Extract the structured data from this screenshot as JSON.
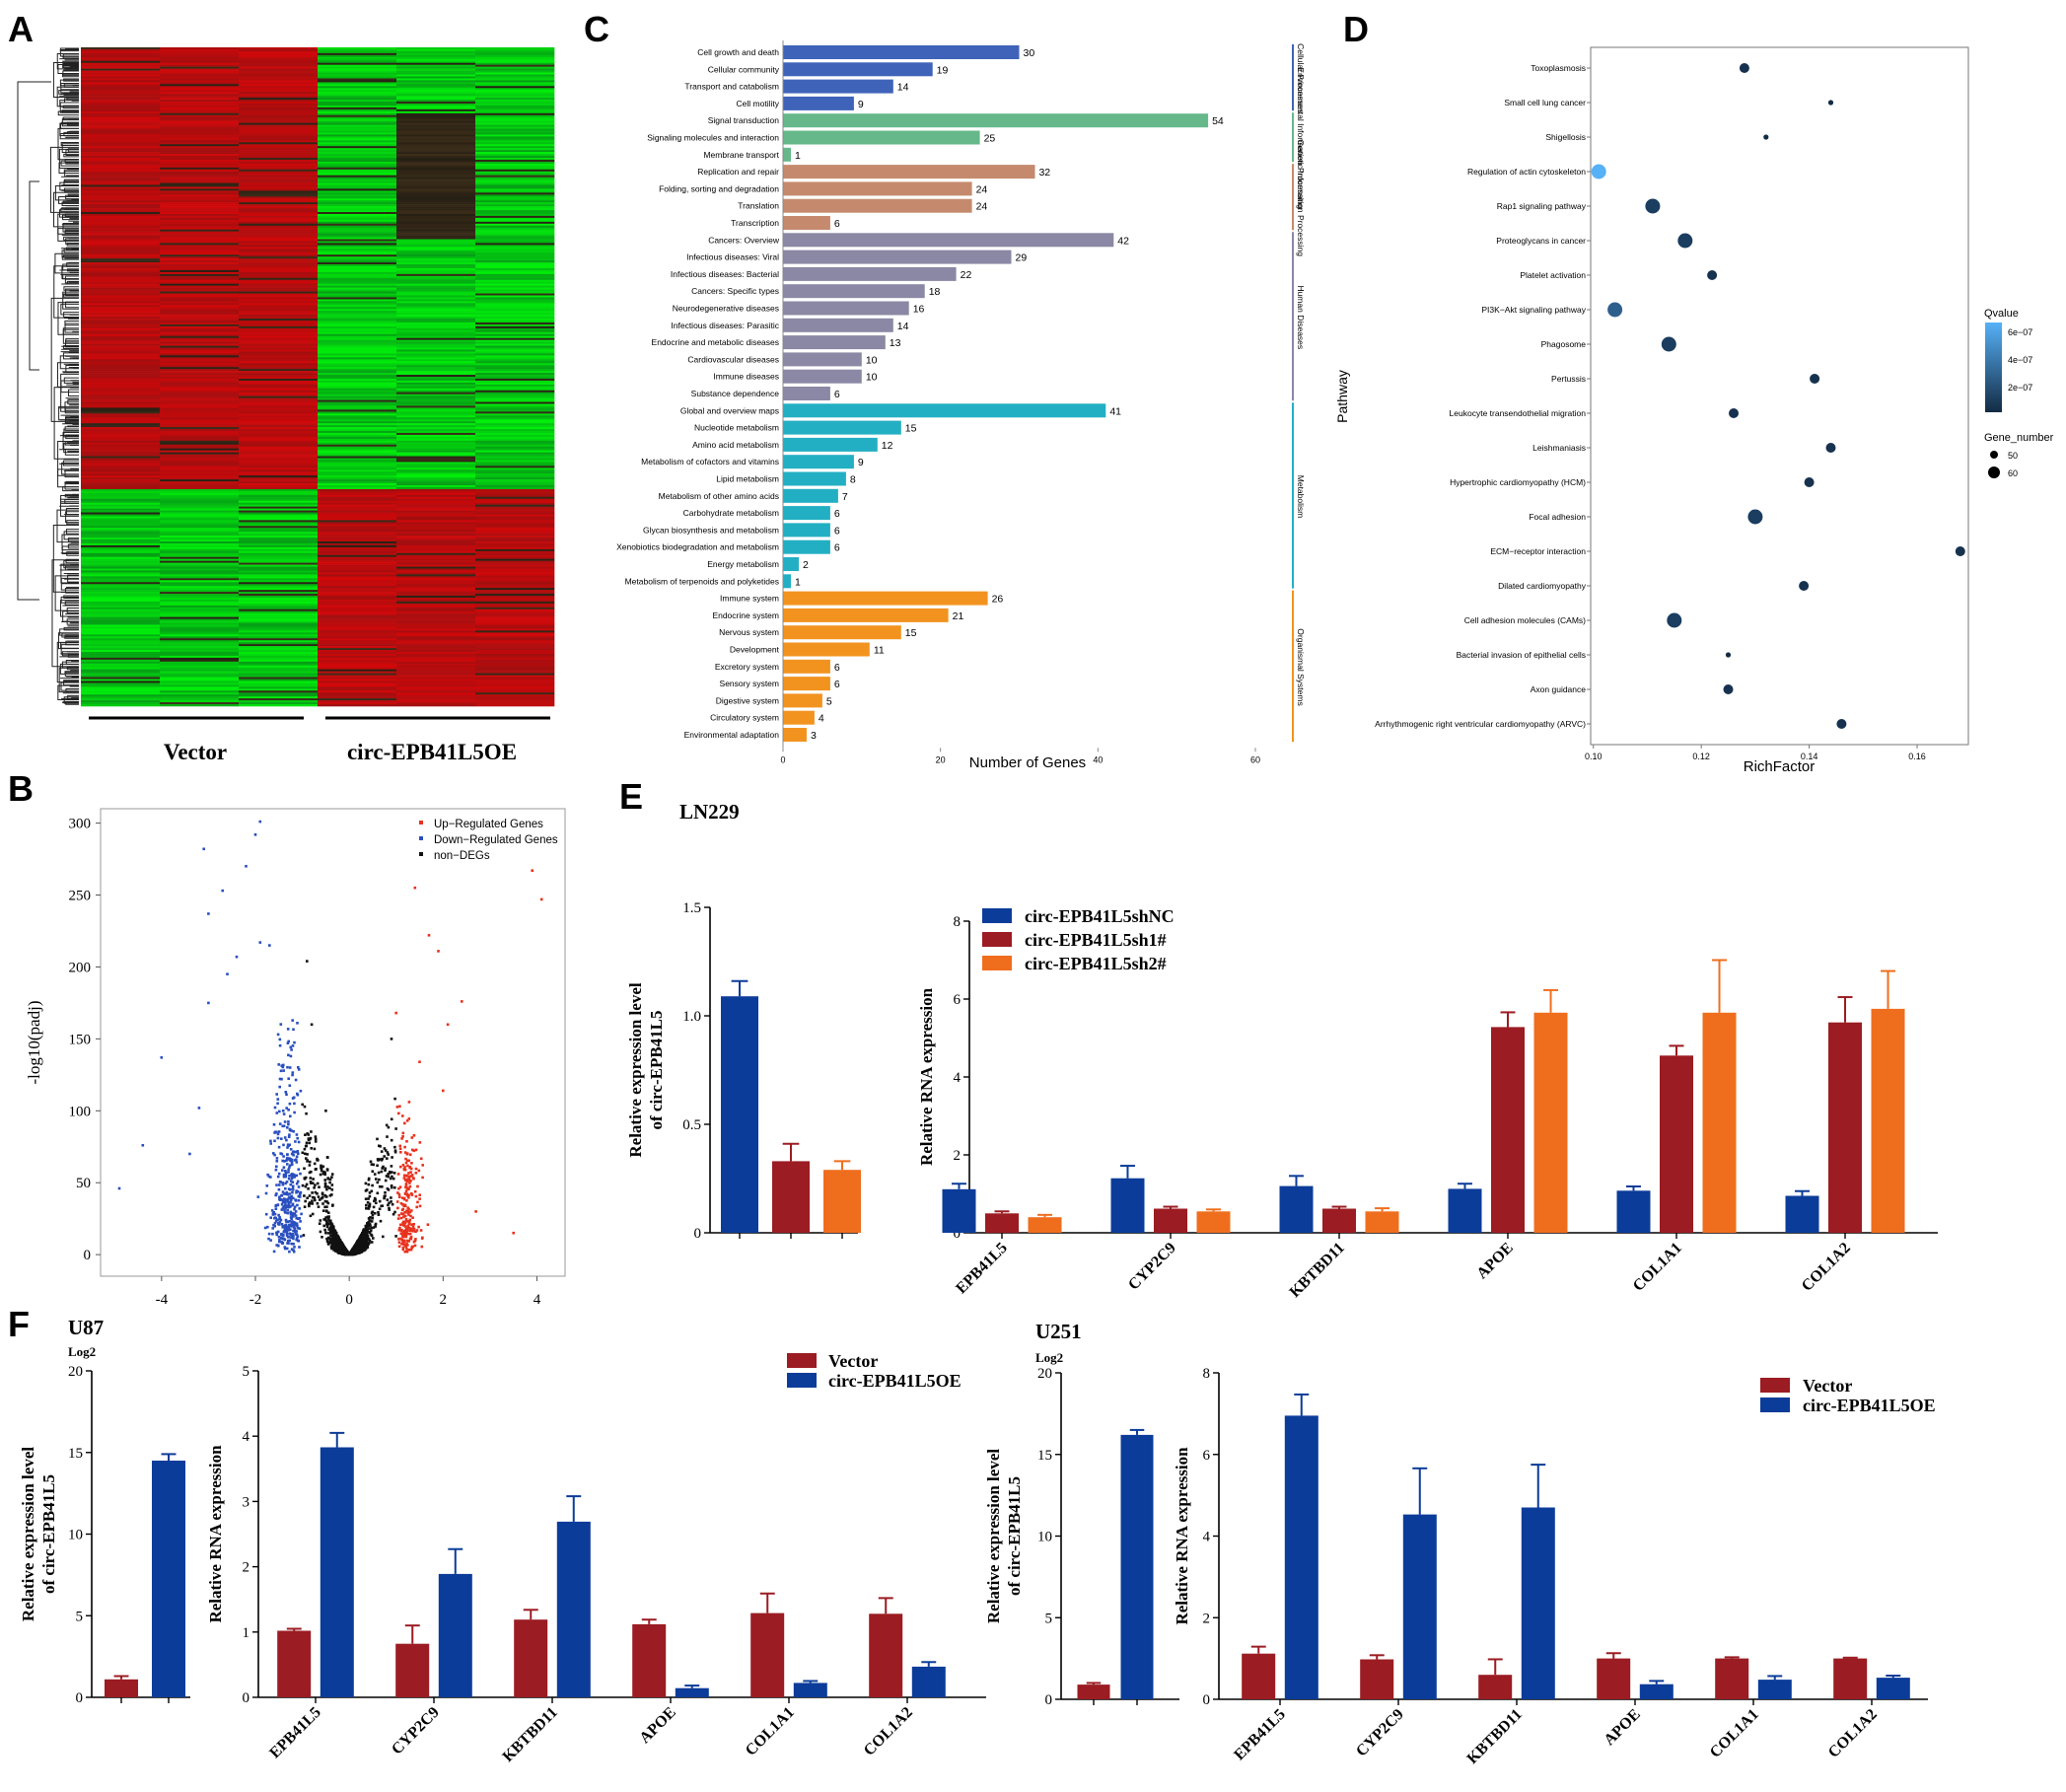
{
  "panel_labels": [
    "A",
    "B",
    "C",
    "D",
    "E",
    "F"
  ],
  "colors": {
    "heat_red": "#c8171b",
    "heat_green": "#2dbf2d",
    "heat_black": "#111111",
    "blue": "#0c3c99",
    "darkred": "#9b1c22",
    "orange": "#ef6e1e",
    "up": "#e8321e",
    "down": "#2a4fbf",
    "non": "#111111",
    "cat_cell": "#3f63b8",
    "cat_env": "#66b88a",
    "cat_gen": "#c58a6e",
    "cat_hum": "#8a88a4",
    "cat_met": "#23afc3",
    "cat_org": "#f29320"
  },
  "chart_data": [
    {
      "panel": "A",
      "type": "heatmap",
      "groups": [
        "Vector",
        "circ-EPB41L5OE"
      ],
      "columns": 6,
      "blocks": [
        {
          "rows_fraction": 0.1,
          "pattern": [
            "red",
            "red",
            "red",
            "green",
            "green",
            "green"
          ]
        },
        {
          "rows_fraction": 0.19,
          "pattern": [
            "red",
            "red",
            "red",
            "green",
            "black",
            "green"
          ]
        },
        {
          "rows_fraction": 0.38,
          "pattern": [
            "red",
            "red",
            "red",
            "green",
            "green",
            "green"
          ]
        },
        {
          "rows_fraction": 0.33,
          "pattern": [
            "green",
            "green",
            "green",
            "red",
            "red",
            "red"
          ]
        }
      ]
    },
    {
      "panel": "B",
      "type": "scatter",
      "xlabel": "",
      "ylabel": "-log10(padj)",
      "xlim": [
        -5.3,
        4.6
      ],
      "ylim": [
        -15,
        310
      ],
      "xticks": [
        "-4",
        "-2",
        "0",
        "2",
        "4"
      ],
      "yticks": [
        "0",
        "50",
        "100",
        "150",
        "200",
        "250",
        "300"
      ],
      "legend": [
        "Up−Regulated Genes",
        "Down−Regulated Genes",
        "non−DEGs"
      ],
      "legend_position": "top-right",
      "outliers_up": [
        [
          1.4,
          255
        ],
        [
          1.7,
          222
        ],
        [
          1.9,
          211
        ],
        [
          2.4,
          176
        ],
        [
          2.1,
          160
        ],
        [
          1.0,
          168
        ],
        [
          1.5,
          134
        ],
        [
          2.0,
          114
        ],
        [
          3.9,
          267
        ],
        [
          4.1,
          247
        ],
        [
          2.7,
          30
        ],
        [
          3.5,
          15
        ]
      ],
      "outliers_down": [
        [
          -1.9,
          301
        ],
        [
          -2.0,
          292
        ],
        [
          -3.1,
          282
        ],
        [
          -2.2,
          270
        ],
        [
          -2.7,
          253
        ],
        [
          -3.0,
          237
        ],
        [
          -1.9,
          217
        ],
        [
          -1.7,
          215
        ],
        [
          -2.4,
          207
        ],
        [
          -2.6,
          195
        ],
        [
          -3.0,
          175
        ],
        [
          -4.0,
          137
        ],
        [
          -3.2,
          102
        ],
        [
          -4.4,
          76
        ],
        [
          -4.9,
          46
        ],
        [
          -3.4,
          70
        ]
      ],
      "outliers_non": [
        [
          -0.9,
          204
        ],
        [
          -0.8,
          160
        ],
        [
          0.9,
          150
        ],
        [
          -0.5,
          100
        ],
        [
          0.8,
          90
        ]
      ]
    },
    {
      "panel": "C",
      "type": "bar",
      "xlabel": "Number of Genes",
      "xlim": [
        0,
        60
      ],
      "xticks": [
        "0",
        "20",
        "40",
        "60"
      ],
      "groups": [
        {
          "name": "Cellular Processes",
          "color": "#3f63b8",
          "items": [
            [
              "Cell growth and death",
              30
            ],
            [
              "Cellular community",
              19
            ],
            [
              "Transport and catabolism",
              14
            ],
            [
              "Cell motility",
              9
            ]
          ]
        },
        {
          "name": "Environmental Information Processing",
          "color": "#66b88a",
          "items": [
            [
              "Signal transduction",
              54
            ],
            [
              "Signaling molecules and interaction",
              25
            ],
            [
              "Membrane transport",
              1
            ]
          ]
        },
        {
          "name": "Genetic Information Processing",
          "color": "#c58a6e",
          "items": [
            [
              "Replication and repair",
              32
            ],
            [
              "Folding, sorting and degradation",
              24
            ],
            [
              "Translation",
              24
            ],
            [
              "Transcription",
              6
            ]
          ]
        },
        {
          "name": "Human Diseases",
          "color": "#8a88a4",
          "items": [
            [
              "Cancers: Overview",
              42
            ],
            [
              "Infectious diseases: Viral",
              29
            ],
            [
              "Infectious diseases: Bacterial",
              22
            ],
            [
              "Cancers: Specific types",
              18
            ],
            [
              "Neurodegenerative diseases",
              16
            ],
            [
              "Infectious diseases: Parasitic",
              14
            ],
            [
              "Endocrine and metabolic diseases",
              13
            ],
            [
              "Cardiovascular diseases",
              10
            ],
            [
              "Immune diseases",
              10
            ],
            [
              "Substance dependence",
              6
            ]
          ]
        },
        {
          "name": "Metabolism",
          "color": "#23afc3",
          "items": [
            [
              "Global and overview maps",
              41
            ],
            [
              "Nucleotide metabolism",
              15
            ],
            [
              "Amino acid metabolism",
              12
            ],
            [
              "Metabolism of cofactors and vitamins",
              9
            ],
            [
              "Lipid metabolism",
              8
            ],
            [
              "Metabolism of other amino acids",
              7
            ],
            [
              "Carbohydrate metabolism",
              6
            ],
            [
              "Glycan biosynthesis and metabolism",
              6
            ],
            [
              "Xenobiotics biodegradation and metabolism",
              6
            ],
            [
              "Energy metabolism",
              2
            ],
            [
              "Metabolism of terpenoids and polyketides",
              1
            ]
          ]
        },
        {
          "name": "Organismal Systems",
          "color": "#f29320",
          "items": [
            [
              "Immune system",
              26
            ],
            [
              "Endocrine system",
              21
            ],
            [
              "Nervous system",
              15
            ],
            [
              "Development",
              11
            ],
            [
              "Excretory system",
              6
            ],
            [
              "Sensory system",
              6
            ],
            [
              "Digestive system",
              5
            ],
            [
              "Circulatory system",
              4
            ],
            [
              "Environmental adaptation",
              3
            ]
          ]
        }
      ]
    },
    {
      "panel": "D",
      "type": "scatter",
      "xlabel": "RichFactor",
      "ylabel": "Pathway",
      "xlim": [
        0.0995,
        0.1695
      ],
      "xticks": [
        0.1,
        0.12,
        0.14,
        0.16
      ],
      "xtick_labels": [
        "0.10",
        "0.12",
        "0.14",
        "0.16"
      ],
      "legend_qvalue_title": "Qvalue",
      "legend_qvalue_ticks": [
        "6e−07",
        "4e−07",
        "2e−07"
      ],
      "legend_size_title": "Gene_number",
      "legend_size_ticks": [
        "50",
        "60"
      ],
      "points": [
        [
          "Toxoplasmosis",
          0.128,
          "m"
        ],
        [
          "Small cell lung cancer",
          0.144,
          "s"
        ],
        [
          "Shigellosis",
          0.132,
          "s"
        ],
        [
          "Regulation of actin cytoskeleton",
          0.101,
          "l"
        ],
        [
          "Rap1 signaling pathway",
          0.111,
          "l"
        ],
        [
          "Proteoglycans in cancer",
          0.117,
          "l"
        ],
        [
          "Platelet activation",
          0.122,
          "m"
        ],
        [
          "PI3K−Akt signaling pathway",
          0.104,
          "l"
        ],
        [
          "Phagosome",
          0.114,
          "l"
        ],
        [
          "Pertussis",
          0.141,
          "m"
        ],
        [
          "Leukocyte transendothelial migration",
          0.126,
          "m"
        ],
        [
          "Leishmaniasis",
          0.144,
          "m"
        ],
        [
          "Hypertrophic cardiomyopathy (HCM)",
          0.14,
          "m"
        ],
        [
          "Focal adhesion",
          0.13,
          "l"
        ],
        [
          "ECM−receptor interaction",
          0.168,
          "m"
        ],
        [
          "Dilated cardiomyopathy",
          0.139,
          "m"
        ],
        [
          "Cell adhesion molecules (CAMs)",
          0.115,
          "l"
        ],
        [
          "Bacterial invasion of epithelial cells",
          0.125,
          "s"
        ],
        [
          "Axon guidance",
          0.125,
          "m"
        ],
        [
          "Arrhythmogenic right ventricular cardiomyopathy (ARVC)",
          0.146,
          "m"
        ]
      ]
    },
    {
      "panel": "E-left",
      "type": "bar",
      "title": "LN229",
      "ylabel": "Relative expression level of circ-EPB41L5",
      "ylim": [
        0,
        1.5
      ],
      "yticks": [
        "0",
        "0.5",
        "1.0",
        "1.5"
      ],
      "values": [
        1.09,
        0.33,
        0.29
      ],
      "errors": [
        0.07,
        0.08,
        0.04
      ],
      "colors": [
        "#0c3c99",
        "#9b1c22",
        "#ef6e1e"
      ]
    },
    {
      "panel": "E-right",
      "type": "bar",
      "ylabel": "Relative RNA expression",
      "ylim": [
        0,
        8
      ],
      "yticks": [
        "0",
        "2",
        "4",
        "6",
        "8"
      ],
      "categories": [
        "EPB41L5",
        "CYP2C9",
        "KBTBD11",
        "APOE",
        "COL1A1",
        "COL1A2"
      ],
      "series": [
        {
          "name": "circ-EPB41L5shNC",
          "color": "#0c3c99",
          "values": [
            1.12,
            1.4,
            1.2,
            1.13,
            1.08,
            0.95
          ],
          "errors": [
            0.14,
            0.32,
            0.26,
            0.13,
            0.11,
            0.12
          ]
        },
        {
          "name": "circ-EPB41L5sh1#",
          "color": "#9b1c22",
          "values": [
            0.5,
            0.62,
            0.62,
            5.28,
            4.55,
            5.4
          ],
          "errors": [
            0.05,
            0.05,
            0.05,
            0.38,
            0.25,
            0.65
          ]
        },
        {
          "name": "circ-EPB41L5sh2#",
          "color": "#ef6e1e",
          "values": [
            0.4,
            0.55,
            0.55,
            5.65,
            5.65,
            5.75
          ],
          "errors": [
            0.06,
            0.05,
            0.08,
            0.58,
            1.35,
            0.97
          ]
        }
      ]
    },
    {
      "panel": "F-U87-left",
      "type": "bar",
      "title": "U87",
      "unit": "Log2",
      "ylabel": "Relative expression level of circ-EPB41L5",
      "ylim": [
        0,
        20
      ],
      "yticks": [
        "0",
        "5",
        "10",
        "15",
        "20"
      ],
      "values": [
        1.1,
        14.5
      ],
      "errors": [
        0.2,
        0.4
      ],
      "colors": [
        "#9b1c22",
        "#0c3c99"
      ]
    },
    {
      "panel": "F-U87-right",
      "type": "bar",
      "ylabel": "Relative RNA expression",
      "ylim": [
        0,
        5
      ],
      "yticks": [
        "0",
        "1",
        "2",
        "3",
        "4",
        "5"
      ],
      "categories": [
        "EPB41L5",
        "CYP2C9",
        "KBTBD11",
        "APOE",
        "COL1A1",
        "COL1A2"
      ],
      "series": [
        {
          "name": "Vector",
          "color": "#9b1c22",
          "values": [
            1.02,
            0.82,
            1.19,
            1.12,
            1.29,
            1.28
          ],
          "errors": [
            0.03,
            0.28,
            0.15,
            0.07,
            0.3,
            0.24
          ]
        },
        {
          "name": "circ-EPB41L5OE",
          "color": "#0c3c99",
          "values": [
            3.83,
            1.89,
            2.69,
            0.14,
            0.22,
            0.47
          ],
          "errors": [
            0.22,
            0.38,
            0.39,
            0.04,
            0.03,
            0.07
          ]
        }
      ]
    },
    {
      "panel": "F-U251-left",
      "type": "bar",
      "title": "U251",
      "unit": "Log2",
      "ylabel": "Relative expression level of circ-EPB41L5",
      "ylim": [
        0,
        20
      ],
      "yticks": [
        "0",
        "5",
        "10",
        "15",
        "20"
      ],
      "values": [
        0.9,
        16.2
      ],
      "errors": [
        0.1,
        0.3
      ],
      "colors": [
        "#9b1c22",
        "#0c3c99"
      ]
    },
    {
      "panel": "F-U251-right",
      "type": "bar",
      "ylabel": "Relative RNA expression",
      "ylim": [
        0,
        8
      ],
      "yticks": [
        "0",
        "2",
        "4",
        "6",
        "8"
      ],
      "categories": [
        "EPB41L5",
        "CYP2C9",
        "KBTBD11",
        "APOE",
        "COL1A1",
        "COL1A2"
      ],
      "series": [
        {
          "name": "Vector",
          "color": "#9b1c22",
          "values": [
            1.12,
            0.98,
            0.6,
            1.0,
            1.0,
            1.0
          ],
          "errors": [
            0.17,
            0.1,
            0.38,
            0.13,
            0.03,
            0.02
          ]
        },
        {
          "name": "circ-EPB41L5OE",
          "color": "#0c3c99",
          "values": [
            6.95,
            4.53,
            4.7,
            0.37,
            0.48,
            0.53
          ],
          "errors": [
            0.52,
            1.13,
            1.05,
            0.08,
            0.09,
            0.05
          ]
        }
      ]
    }
  ]
}
